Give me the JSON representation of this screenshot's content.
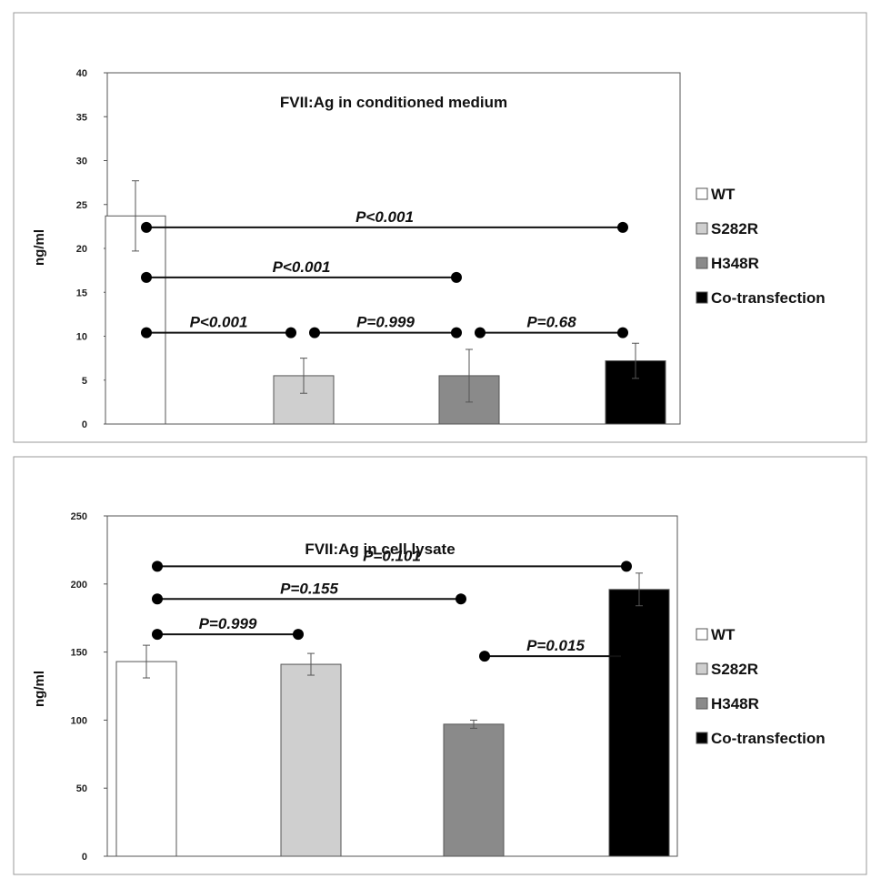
{
  "chart_data": [
    {
      "type": "bar",
      "title": "FVII:Ag in conditioned  medium",
      "ylabel": "ng/ml",
      "ylim": [
        0,
        40
      ],
      "yticks": [
        0,
        5,
        10,
        15,
        20,
        25,
        30,
        35,
        40
      ],
      "categories": [
        "WT",
        "S282R",
        "H348R",
        "Co-transfection"
      ],
      "values": [
        23.7,
        5.5,
        5.5,
        7.2
      ],
      "errors": [
        4.0,
        2.0,
        3.0,
        2.0
      ],
      "colors": [
        "#ffffff",
        "#cfcfcf",
        "#8a8a8a",
        "#000000"
      ],
      "legend": [
        "WT",
        "S282R",
        "H348R",
        "Co-transfection"
      ],
      "legend_position": "right",
      "comparisons": [
        {
          "from": 0,
          "to": 3,
          "y": 22.4,
          "label": "P<0.001"
        },
        {
          "from": 0,
          "to": 2,
          "y": 16.7,
          "label": "P<0.001"
        },
        {
          "from": 0,
          "to": 1,
          "y": 10.4,
          "label": "P<0.001"
        },
        {
          "from": 1,
          "to": 2,
          "y": 10.4,
          "label": "P=0.999"
        },
        {
          "from": 2,
          "to": 3,
          "y": 10.4,
          "label": "P=0.68"
        }
      ]
    },
    {
      "type": "bar",
      "title": "FVII:Ag in cell lysate",
      "ylabel": "ng/ml",
      "ylim": [
        0,
        250
      ],
      "yticks": [
        0,
        50,
        100,
        150,
        200,
        250
      ],
      "categories": [
        "WT",
        "S282R",
        "H348R",
        "Co-transfection"
      ],
      "values": [
        143,
        141,
        97,
        196
      ],
      "errors": [
        12,
        8,
        3,
        12
      ],
      "colors": [
        "#ffffff",
        "#cfcfcf",
        "#8a8a8a",
        "#000000"
      ],
      "legend": [
        "WT",
        "S282R",
        "H348R",
        "Co-transfection"
      ],
      "legend_position": "right",
      "comparisons": [
        {
          "from": 0,
          "to": 3,
          "y": 213,
          "label": "P=0.101"
        },
        {
          "from": 0,
          "to": 2,
          "y": 189,
          "label": "P=0.155"
        },
        {
          "from": 0,
          "to": 1,
          "y": 163,
          "label": "P=0.999"
        },
        {
          "from": 2,
          "to": 3,
          "y": 147,
          "label": "P=0.015"
        }
      ]
    }
  ]
}
